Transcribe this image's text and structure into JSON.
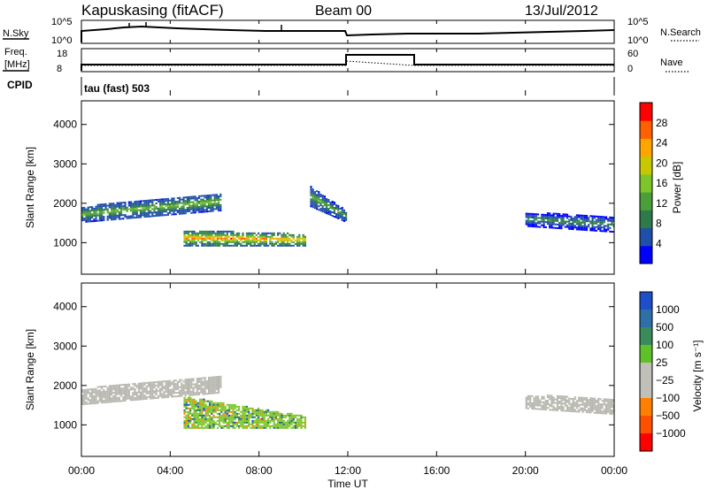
{
  "header": {
    "station": "Kapuskasing (fitACF)",
    "beam": "Beam 00",
    "date": "13/Jul/2012"
  },
  "top_panels": {
    "nsky_label": "N.Sky",
    "nsearch_label": "N.Search",
    "left_ticks": [
      "10^5",
      "10^0"
    ],
    "right_ticks": [
      "10^5",
      "10^0"
    ],
    "freq_label_1": "Freq.",
    "freq_label_2": "[MHz]",
    "freq_ticks": [
      "18",
      "8"
    ],
    "nave_label": "Nave",
    "nave_ticks": [
      "60",
      "0"
    ],
    "cpid_label": "CPID",
    "cpid_value": "tau (fast) 503"
  },
  "colors": {
    "power_scale": [
      "#0000ff",
      "#1f4fa8",
      "#2f7a4a",
      "#4c9e3a",
      "#7dc52a",
      "#c8c800",
      "#ffa500",
      "#ff6000",
      "#ff0000"
    ],
    "velocity_scale": [
      "#1f4fc8",
      "#2f6fa8",
      "#3a8a5a",
      "#5fc02a",
      "#c0c0b8",
      "#c0c0b8",
      "#ff8000",
      "#ff5000",
      "#ff0000"
    ],
    "ground_scatter": "#b8b8b0"
  },
  "chart_data": [
    {
      "type": "heatmap",
      "title": "",
      "ylabel": "Slant Range [km]",
      "xlabel": "",
      "ylim": [
        200,
        4600
      ],
      "yticks": [
        "1000",
        "2000",
        "3000",
        "4000"
      ],
      "xlim": [
        "00:00",
        "24:00"
      ],
      "colorbar_label": "Power [dB]",
      "colorbar_ticks": [
        "4",
        "8",
        "12",
        "16",
        "20",
        "24",
        "28"
      ],
      "colorbar_range": [
        0,
        32
      ],
      "echo_regions": [
        {
          "t_start": 0.0,
          "t_end": 6.3,
          "range_lo_start": 1500,
          "range_hi_start": 1900,
          "range_lo_end": 1800,
          "range_hi_end": 2250,
          "peak_db": 18
        },
        {
          "t_start": 4.6,
          "t_end": 10.1,
          "range_lo_start": 900,
          "range_hi_start": 1300,
          "range_lo_end": 900,
          "range_hi_end": 1200,
          "peak_db": 30
        },
        {
          "t_start": 10.3,
          "t_end": 11.9,
          "range_lo_start": 1900,
          "range_hi_start": 2400,
          "range_lo_end": 1500,
          "range_hi_end": 1800,
          "peak_db": 16
        },
        {
          "t_start": 20.0,
          "t_end": 24.0,
          "range_lo_start": 1400,
          "range_hi_start": 1750,
          "range_lo_end": 1250,
          "range_hi_end": 1650,
          "peak_db": 12
        }
      ]
    },
    {
      "type": "heatmap",
      "title": "",
      "ylabel": "Slant Range [km]",
      "xlabel": "Time UT",
      "ylim": [
        200,
        4600
      ],
      "yticks": [
        "1000",
        "2000",
        "3000",
        "4000"
      ],
      "xticks": [
        "00:00",
        "04:00",
        "08:00",
        "12:00",
        "16:00",
        "20:00",
        "00:00"
      ],
      "colorbar_label": "Velocity [m s⁻¹]",
      "colorbar_ticks": [
        "1000",
        "500",
        "100",
        "25",
        "−25",
        "−100",
        "−500",
        "−1000"
      ],
      "echo_regions": [
        {
          "t_start": 0.0,
          "t_end": 6.3,
          "range_lo_start": 1500,
          "range_hi_start": 1900,
          "range_lo_end": 1800,
          "range_hi_end": 2250,
          "velocity": "ground"
        },
        {
          "t_start": 4.6,
          "t_end": 10.1,
          "range_lo_start": 900,
          "range_hi_start": 1700,
          "range_lo_end": 900,
          "range_hi_end": 1200,
          "velocity": "100"
        },
        {
          "t_start": 20.0,
          "t_end": 24.0,
          "range_lo_start": 1400,
          "range_hi_start": 1750,
          "range_lo_end": 1250,
          "range_hi_end": 1650,
          "velocity": "ground"
        }
      ]
    }
  ]
}
